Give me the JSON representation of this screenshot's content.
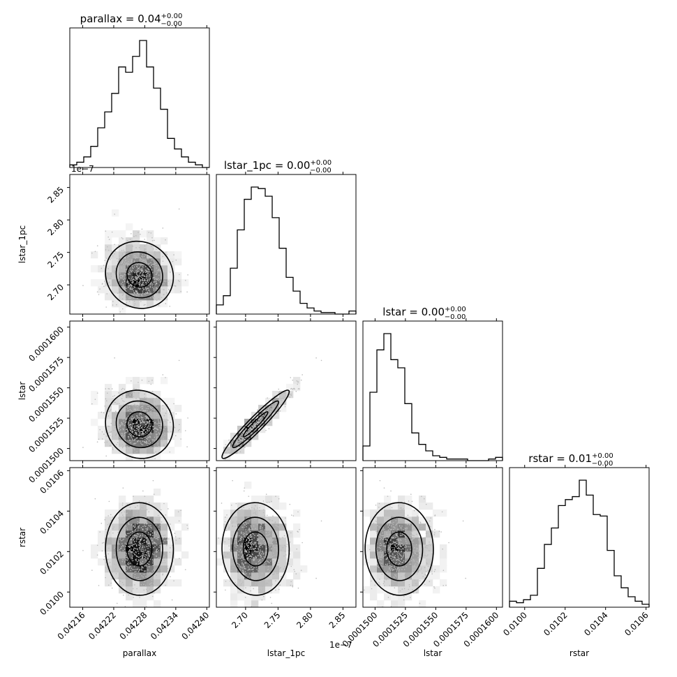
{
  "chart_data": {
    "type": "corner",
    "parameters": [
      "parallax",
      "lstar_1pc",
      "lstar",
      "rstar"
    ],
    "titles": [
      {
        "label": "parallax = 0.04",
        "sup": "+0.00",
        "sub": "−0.00"
      },
      {
        "label": "lstar_1pc = 0.00",
        "sup": "+0.00",
        "sub": "−0.00"
      },
      {
        "label": "lstar = 0.00",
        "sup": "+0.00",
        "sub": "−0.00"
      },
      {
        "label": "rstar = 0.01",
        "sup": "+0.00",
        "sub": "−0.00"
      }
    ],
    "axis_labels": [
      "parallax",
      "lstar_1pc",
      "lstar",
      "rstar"
    ],
    "offset_text": "1e−7",
    "ranges": [
      [
        0.042135,
        0.042405
      ],
      [
        2.655e-07,
        2.87e-07
      ],
      [
        0.000149,
        0.0001605
      ],
      [
        0.009925,
        0.010615
      ]
    ],
    "ticks": [
      {
        "values": [
          0.04216,
          0.04222,
          0.04228,
          0.04234,
          0.0424
        ],
        "labels": [
          "0.04216",
          "0.04222",
          "0.04228",
          "0.04234",
          "0.04240"
        ]
      },
      {
        "values": [
          2.7e-07,
          2.75e-07,
          2.8e-07,
          2.85e-07
        ],
        "labels": [
          "2.70",
          "2.75",
          "2.80",
          "2.85"
        ]
      },
      {
        "values": [
          0.00015,
          0.0001525,
          0.000155,
          0.0001575,
          0.00016
        ],
        "labels": [
          "0.0001500",
          "0.0001525",
          "0.0001550",
          "0.0001575",
          "0.0001600"
        ]
      },
      {
        "values": [
          0.01,
          0.0102,
          0.0104,
          0.0106
        ],
        "labels": [
          "0.0100",
          "0.0102",
          "0.0104",
          "0.0106"
        ]
      }
    ],
    "histograms": [
      {
        "counts": [
          1,
          2,
          4,
          8,
          15,
          21,
          28,
          38,
          36,
          42,
          48,
          38,
          30,
          22,
          11,
          7,
          4,
          2,
          1,
          0
        ]
      },
      {
        "counts": [
          6,
          12,
          30,
          55,
          75,
          83,
          82,
          77,
          63,
          43,
          24,
          15,
          7,
          4,
          2,
          1,
          1,
          0,
          0,
          2
        ]
      },
      {
        "counts": [
          9,
          42,
          68,
          78,
          62,
          57,
          35,
          17,
          10,
          6,
          3,
          2,
          1,
          1,
          1,
          0,
          0,
          0,
          1,
          2
        ]
      },
      {
        "counts": [
          4,
          3,
          5,
          8,
          26,
          42,
          53,
          68,
          72,
          74,
          85,
          75,
          62,
          61,
          38,
          21,
          13,
          7,
          4,
          2
        ]
      }
    ],
    "smoothing": 1
  }
}
